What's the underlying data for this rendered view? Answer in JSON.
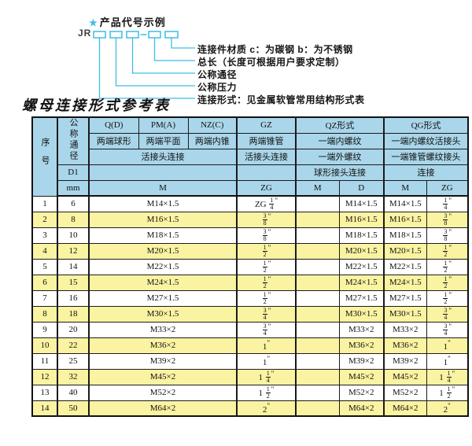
{
  "diagram": {
    "star": "★",
    "heading": "产品代号示例",
    "code_prefix": "JR",
    "labels": [
      "连接件材质  c：为碳钢  b：为不锈钢",
      "总长（长度可根据用户要求定制）",
      "公称通径",
      "公称压力",
      "连接形式：见金属软管常用结构形式表"
    ]
  },
  "table_title": "螺母连接形式参考表",
  "table": {
    "header": {
      "seq": "序号",
      "dn": "公称通径",
      "d1": "D1",
      "mm": "mm",
      "q": "Q(D)",
      "q_sub": "两端球形",
      "pm": "PM(A)",
      "pm_sub": "两端平面",
      "nz": "NZ(C)",
      "nz_sub": "两端内锥",
      "gz": "GZ",
      "gz_sub": "两端锥管",
      "gz_join": "活接头连接",
      "union_join": "活接头连接",
      "qz": "QZ形式",
      "qz_sub1": "一端内螺纹",
      "qz_sub2": "一端外螺纹",
      "qz_sub3": "球形接头连接",
      "qg": "QG形式",
      "qg_sub1": "一端内螺纹活接头",
      "qg_sub2": "一端锥管螺纹接头",
      "qg_sub3": "连接",
      "m": "M",
      "zg": "ZG",
      "qz_m": "M",
      "qz_d": "D",
      "qg_m": "M",
      "qg_zg": "ZG"
    },
    "rows": [
      {
        "no": "1",
        "dn": "6",
        "m": "M14×1.5",
        "gz": "ZG 1/4\"",
        "qz_m": "",
        "qz_d": "M14×1.5",
        "qg_m": "M14×1.5",
        "qg_zg": "1/4\""
      },
      {
        "no": "2",
        "dn": "8",
        "m": "M16×1.5",
        "gz": "3/8\"",
        "qz_m": "",
        "qz_d": "M16×1.5",
        "qg_m": "M16×1.5",
        "qg_zg": "3/8\""
      },
      {
        "no": "3",
        "dn": "10",
        "m": "M18×1.5",
        "gz": "3/8\"",
        "qz_m": "",
        "qz_d": "M18×1.5",
        "qg_m": "M18×1.5",
        "qg_zg": "3/8\""
      },
      {
        "no": "4",
        "dn": "12",
        "m": "M20×1.5",
        "gz": "1/2\"",
        "qz_m": "",
        "qz_d": "M20×1.5",
        "qg_m": "M20×1.5",
        "qg_zg": "1/2\""
      },
      {
        "no": "5",
        "dn": "14",
        "m": "M22×1.5",
        "gz": "1/2\"",
        "qz_m": "",
        "qz_d": "M22×1.5",
        "qg_m": "M22×1.5",
        "qg_zg": "1/2\""
      },
      {
        "no": "6",
        "dn": "15",
        "m": "M24×1.5",
        "gz": "1/2\"",
        "qz_m": "",
        "qz_d": "M24×1.5",
        "qg_m": "M24×1.5",
        "qg_zg": "1/2\""
      },
      {
        "no": "7",
        "dn": "16",
        "m": "M27×1.5",
        "gz": "1/2\"",
        "qz_m": "",
        "qz_d": "M27×1.5",
        "qg_m": "M27×1.5",
        "qg_zg": "1/2\""
      },
      {
        "no": "8",
        "dn": "18",
        "m": "M30×1.5",
        "gz": "3/4\"",
        "qz_m": "",
        "qz_d": "M30×1.5",
        "qg_m": "M30×1.5",
        "qg_zg": "3/4\""
      },
      {
        "no": "9",
        "dn": "20",
        "m": "M33×2",
        "gz": "3/4\"",
        "qz_m": "",
        "qz_d": "M33×2",
        "qg_m": "M33×2",
        "qg_zg": "3/4\""
      },
      {
        "no": "10",
        "dn": "22",
        "m": "M36×2",
        "gz": "1\"",
        "qz_m": "",
        "qz_d": "M36×2",
        "qg_m": "M36×2",
        "qg_zg": "1\""
      },
      {
        "no": "11",
        "dn": "25",
        "m": "M39×2",
        "gz": "1\"",
        "qz_m": "",
        "qz_d": "M39×2",
        "qg_m": "M39×2",
        "qg_zg": "1\""
      },
      {
        "no": "12",
        "dn": "32",
        "m": "M45×2",
        "gz": "1 1/4\"",
        "qz_m": "",
        "qz_d": "M45×2",
        "qg_m": "M45×2",
        "qg_zg": "1 1/4\""
      },
      {
        "no": "13",
        "dn": "40",
        "m": "M52×2",
        "gz": "1 1/2\"",
        "qz_m": "",
        "qz_d": "M52×2",
        "qg_m": "M52×2",
        "qg_zg": "1 1/2\""
      },
      {
        "no": "14",
        "dn": "50",
        "m": "M64×2",
        "gz": "2\"",
        "qz_m": "",
        "qz_d": "M64×2",
        "qg_m": "M64×2",
        "qg_zg": "2\""
      }
    ]
  },
  "colors": {
    "accent_cyan": "#3fbde4",
    "header_blue": "#a9d6ea",
    "row_yellow": "#faf3a2",
    "row_white": "#ffffff",
    "border": "#111111"
  }
}
